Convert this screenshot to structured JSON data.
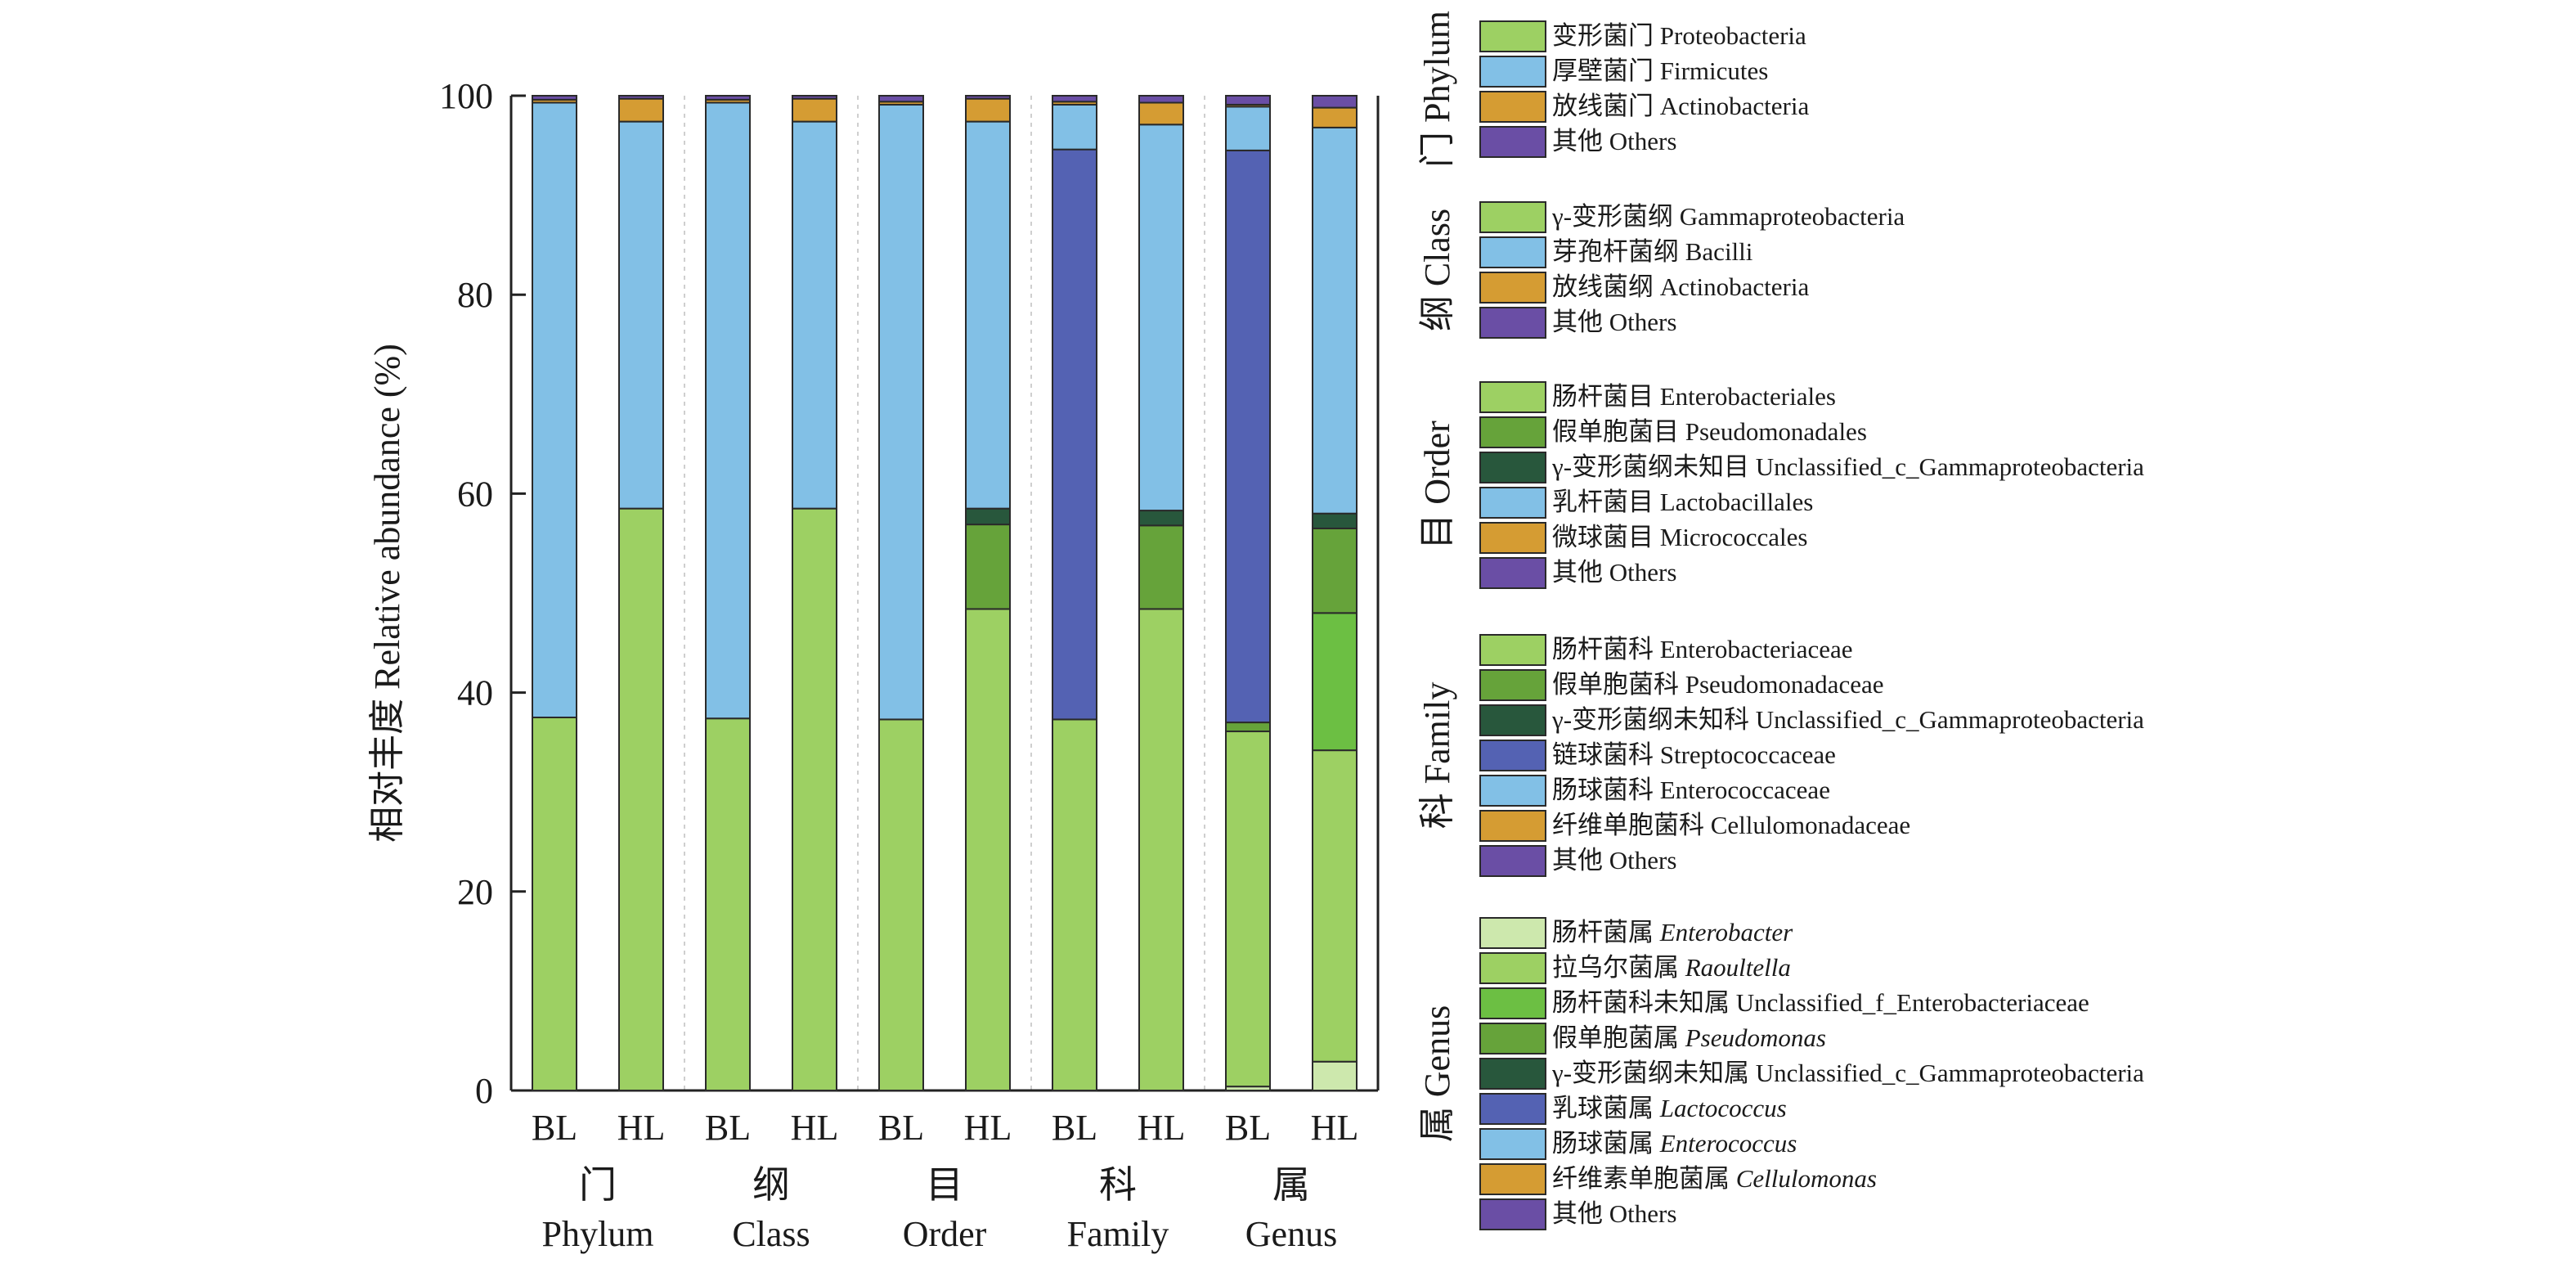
{
  "chart_data": {
    "type": "bar",
    "stacked": true,
    "ylabel": "相对丰度 Relative abundance (%)",
    "ylim": [
      0,
      100
    ],
    "yticks": [
      0,
      20,
      40,
      60,
      80,
      100
    ],
    "bars": [
      "BL",
      "HL",
      "BL",
      "HL",
      "BL",
      "HL",
      "BL",
      "HL",
      "BL",
      "HL"
    ],
    "groups": [
      {
        "zh": "门",
        "en": "Phylum",
        "legend_title": "门 Phylum",
        "categories": [
          {
            "zh": "变形菌门",
            "en": "Proteobacteria",
            "italic": false,
            "color": "#9dd063"
          },
          {
            "zh": "厚壁菌门",
            "en": "Firmicutes",
            "italic": false,
            "color": "#82c0e6"
          },
          {
            "zh": "放线菌门",
            "en": "Actinobacteria",
            "italic": false,
            "color": "#d59c33"
          },
          {
            "zh": "其他",
            "en": "Others",
            "italic": false,
            "color": "#6a4ea5"
          }
        ],
        "values": {
          "BL": [
            37.5,
            61.8,
            0.3,
            0.4
          ],
          "HL": [
            58.5,
            38.9,
            2.3,
            0.3
          ]
        }
      },
      {
        "zh": "纲",
        "en": "Class",
        "legend_title": "纲 Class",
        "categories": [
          {
            "zh": "γ-变形菌纲",
            "en": "Gammaproteobacteria",
            "italic": false,
            "color": "#9dd063"
          },
          {
            "zh": "芽孢杆菌纲",
            "en": "Bacilli",
            "italic": false,
            "color": "#82c0e6"
          },
          {
            "zh": "放线菌纲",
            "en": "Actinobacteria",
            "italic": false,
            "color": "#d59c33"
          },
          {
            "zh": "其他",
            "en": "Others",
            "italic": false,
            "color": "#6a4ea5"
          }
        ],
        "values": {
          "BL": [
            37.4,
            61.9,
            0.3,
            0.4
          ],
          "HL": [
            58.5,
            38.9,
            2.3,
            0.3
          ]
        }
      },
      {
        "zh": "目",
        "en": "Order",
        "legend_title": "目 Order",
        "categories": [
          {
            "zh": "肠杆菌目",
            "en": "Enterobacteriales",
            "italic": false,
            "color": "#9dd063"
          },
          {
            "zh": "假单胞菌目",
            "en": "Pseudomonadales",
            "italic": false,
            "color": "#66a33a"
          },
          {
            "zh": "γ-变形菌纲未知目",
            "en": "Unclassified_c_Gammaproteobacteria",
            "italic": false,
            "color": "#28573c"
          },
          {
            "zh": "乳杆菌目",
            "en": "Lactobacillales",
            "italic": false,
            "color": "#82c0e6"
          },
          {
            "zh": "微球菌目",
            "en": "Micrococcales",
            "italic": false,
            "color": "#d59c33"
          },
          {
            "zh": "其他",
            "en": "Others",
            "italic": false,
            "color": "#6a4ea5"
          }
        ],
        "values": {
          "BL": [
            37.3,
            0,
            0,
            61.8,
            0.3,
            0.6
          ],
          "HL": [
            48.4,
            8.5,
            1.6,
            38.9,
            2.3,
            0.3
          ]
        }
      },
      {
        "zh": "科",
        "en": "Family",
        "legend_title": "科 Family",
        "categories": [
          {
            "zh": "肠杆菌科",
            "en": "Enterobacteriaceae",
            "italic": false,
            "color": "#9dd063"
          },
          {
            "zh": "假单胞菌科",
            "en": "Pseudomonadaceae",
            "italic": false,
            "color": "#66a33a"
          },
          {
            "zh": "γ-变形菌纲未知科",
            "en": "Unclassified_c_Gammaproteobacteria",
            "italic": false,
            "color": "#28573c"
          },
          {
            "zh": "链球菌科",
            "en": "Streptococcaceae",
            "italic": false,
            "color": "#5462b3"
          },
          {
            "zh": "肠球菌科",
            "en": "Enterococcaceae",
            "italic": false,
            "color": "#82c0e6"
          },
          {
            "zh": "纤维单胞菌科",
            "en": "Cellulomonadaceae",
            "italic": false,
            "color": "#d59c33"
          },
          {
            "zh": "其他",
            "en": "Others",
            "italic": false,
            "color": "#6a4ea5"
          }
        ],
        "values": {
          "BL": [
            37.3,
            0,
            0,
            57.3,
            4.5,
            0.3,
            0.6
          ],
          "HL": [
            48.4,
            8.4,
            1.5,
            0,
            38.8,
            2.2,
            0.7
          ]
        }
      },
      {
        "zh": "属",
        "en": "Genus",
        "legend_title": "属 Genus",
        "categories": [
          {
            "zh": "肠杆菌属",
            "en": "Enterobacter",
            "italic": true,
            "color": "#cde8ad"
          },
          {
            "zh": "拉乌尔菌属",
            "en": "Raoultella",
            "italic": true,
            "color": "#9dd063"
          },
          {
            "zh": "肠杆菌科未知属",
            "en": "Unclassified_f_Enterobacteriaceae",
            "italic": false,
            "color": "#6cbf43"
          },
          {
            "zh": "假单胞菌属",
            "en": "Pseudomonas",
            "italic": true,
            "color": "#66a33a"
          },
          {
            "zh": "γ-变形菌纲未知属",
            "en": "Unclassified_c_Gammaproteobacteria",
            "italic": false,
            "color": "#28573c"
          },
          {
            "zh": "乳球菌属",
            "en": "Lactococcus",
            "italic": true,
            "color": "#5462b3"
          },
          {
            "zh": "肠球菌属",
            "en": "Enterococcus",
            "italic": true,
            "color": "#82c0e6"
          },
          {
            "zh": "纤维素单胞菌属",
            "en": "Cellulomonas",
            "italic": true,
            "color": "#d59c33"
          },
          {
            "zh": "其他",
            "en": "Others",
            "italic": false,
            "color": "#6a4ea5"
          }
        ],
        "values": {
          "BL": [
            0.4,
            35.7,
            0,
            0.9,
            0,
            57.5,
            4.4,
            0.2,
            0.9
          ],
          "HL": [
            2.9,
            31.3,
            13.8,
            8.5,
            1.5,
            0,
            38.8,
            2.0,
            1.2
          ]
        }
      }
    ]
  }
}
